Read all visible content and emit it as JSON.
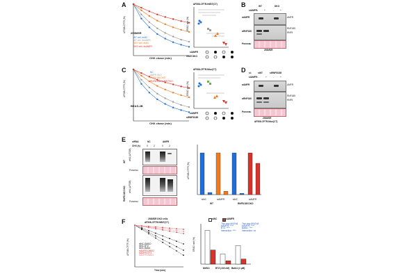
{
  "panel_labels": {
    "a": "A",
    "b": "B",
    "c": "C",
    "d": "D",
    "e": "E",
    "f": "F"
  },
  "colors": {
    "blue": "#1f6fd6",
    "orange": "#f07b1e",
    "gray": "#9a9a9a",
    "red": "#d6342a",
    "pink": "#f27a8a",
    "black": "#111111"
  },
  "panelA": {
    "ylabel": "ΔF508-CFTR (%)",
    "xlabel": "CHX chase (min)",
    "cell_label": "293MSR",
    "legend": [
      "WT cell, dsNC",
      "WT cell, dsAMFR",
      "DKO cell, dsNC",
      "DKO cell, dsAMFR"
    ],
    "dot_title": "ΔF508-CFTR-HiBiT(CT)",
    "dot_ylabel": "ERAD rate (%)",
    "row1": "siAMFR",
    "row2": "5/185 DKO"
  },
  "panelB": {
    "header_si": "siAMFR:",
    "wt": "WT",
    "dko": "DKO",
    "marks": [
      "-",
      "+",
      "-",
      "+"
    ],
    "rows": [
      "αAMFR",
      "αRNF185",
      "Ponceau"
    ],
    "right": [
      "AMFR",
      "RNF185",
      "RNF5"
    ],
    "caption": "293MSR"
  },
  "panelC": {
    "ylabel": "ΔF508-CFTR (%)",
    "xlabel": "CHX chase (min)",
    "cell_label": "BEAS-2B",
    "legend": [
      "NC",
      "AMFR SKO",
      "RNF5/185 DKO",
      "RNF5/185/ AMFR TKO"
    ],
    "dot_title": "ΔF508-CFTR-Nluc(CT)",
    "dot_ylabel": "ERAD rate (%)",
    "row1": "siAMFR",
    "row2": "siRNF5/185"
  },
  "panelD": {
    "si1": "siNT",
    "si2": "siRNF5/185",
    "si_label": "si:",
    "siamfr": "siAMFR:",
    "marks": [
      "-",
      "+",
      "-",
      "+"
    ],
    "rows": [
      "αAMFR",
      "αRNF185",
      "Ponceau"
    ],
    "right": [
      "AMFR",
      "RNF185",
      "RNF5"
    ],
    "caption1": "293MSR",
    "caption2": "ΔF508-CFTR-Nluc(CT)"
  },
  "panelE": {
    "sirna": "siRNA",
    "nc": "NC",
    "amfr": "AMFR",
    "chx": "CHX (h)",
    "times": [
      "0",
      "2",
      "0",
      "2"
    ],
    "wt": "WT",
    "dko": "RNF5/185 DKO",
    "blot_rows": [
      "αHA (ΔF508)",
      "Ponceau",
      "αHA (ΔF508)",
      "Ponceau"
    ],
    "bar_ylabel": "ΔF508-CFTR (%)",
    "groups": [
      "siNC",
      "siAMFR",
      "siNC",
      "siAMFR"
    ],
    "group_labels": [
      "WT",
      "RNF5/185 DKO"
    ]
  },
  "panelF": {
    "title1": "293MSR DKO cells",
    "title2": "ΔF508-CFTR-HiBiT(CT)",
    "ylabel": "ΔF508-CFTR (%)",
    "xlabel": "Time (min)",
    "legend": [
      "siNC-DMSO",
      "siNC-BTZ",
      "siNC-BafA1",
      "siAMFR-DMSO",
      "siAMFR-BTZ",
      "siAMFR-BafA1"
    ],
    "bar_legend": [
      "siNC",
      "siAMFR"
    ],
    "bar_ylabel": "ERAD rate (%)",
    "cats": [
      "DMSO",
      "BTZ (100 nM)",
      "BafA1 (1 µM)"
    ],
    "anova1": "Two-way ANOVA",
    "anova2": "Two-way ANOVA",
    "stats1": [
      "siAMFR: ****",
      "BTZ: ****",
      "Interaction: ****"
    ],
    "stats2": [
      "siAMFR: ****",
      "BafA1: ****",
      "Interaction: ns"
    ]
  },
  "chart_data": [
    {
      "type": "line",
      "title": "",
      "xlabel": "CHX chase (min)",
      "ylabel": "ΔF508-CFTR (%)",
      "x": [
        0,
        20,
        40,
        60,
        80,
        100,
        120,
        140
      ],
      "series": [
        {
          "name": "WT cell, dsNC",
          "values": [
            100,
            72,
            55,
            42,
            33,
            26,
            21,
            17
          ]
        },
        {
          "name": "WT cell, dsAMFR",
          "values": [
            100,
            80,
            65,
            53,
            44,
            37,
            31,
            27
          ]
        },
        {
          "name": "DKO cell, dsNC",
          "values": [
            100,
            88,
            77,
            68,
            61,
            55,
            50,
            46
          ]
        },
        {
          "name": "DKO cell, dsAMFR",
          "values": [
            100,
            93,
            86,
            80,
            75,
            71,
            67,
            64
          ]
        }
      ],
      "ylim": [
        0,
        100
      ]
    },
    {
      "type": "bar",
      "title": "",
      "ylabel": "ΔF508-CFTR (%)",
      "categories": [
        "WT siNC 0",
        "WT siNC 2",
        "WT siAMFR 0",
        "WT siAMFR 2",
        "DKO siNC 0",
        "DKO siNC 2",
        "DKO siAMFR 0",
        "DKO siAMFR 2"
      ],
      "values": [
        100,
        5,
        100,
        8,
        100,
        3,
        100,
        75
      ],
      "ylim": [
        0,
        120
      ]
    },
    {
      "type": "bar",
      "title": "",
      "ylabel": "ERAD rate (%)",
      "categories": [
        "DMSO",
        "BTZ (100 nM)",
        "BafA1 (1 µM)"
      ],
      "series": [
        {
          "name": "siNC",
          "values": [
            100,
            30,
            55
          ]
        },
        {
          "name": "siAMFR",
          "values": [
            42,
            10,
            15
          ]
        }
      ],
      "ylim": [
        0,
        120
      ]
    }
  ]
}
